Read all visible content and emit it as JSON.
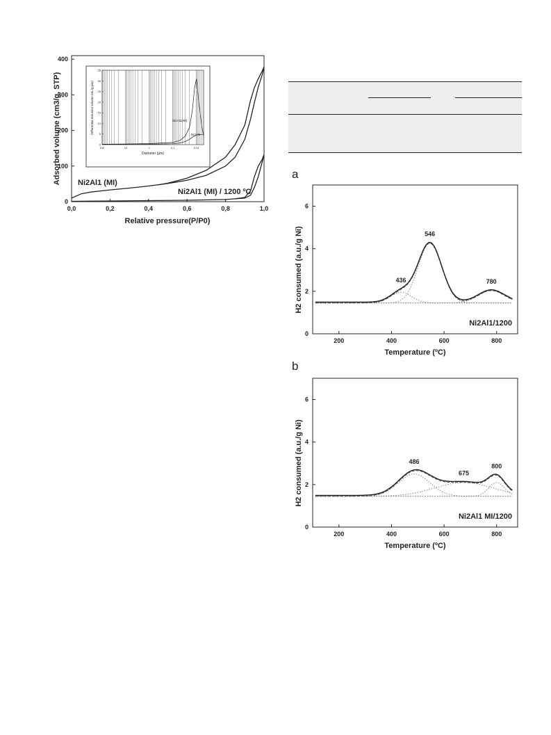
{
  "figure_isotherm": {
    "chart_data": {
      "type": "line",
      "title": "",
      "xlabel": "Relative pressure(P/P0)",
      "ylabel": "Adsorbed volume (cm3/g, STP)",
      "xlim": [
        0.0,
        1.0
      ],
      "ylim": [
        0,
        410
      ],
      "x_ticks": [
        "0,0",
        "0,2",
        "0,4",
        "0,6",
        "0,8",
        "1,0"
      ],
      "y_ticks": [
        "0",
        "100",
        "200",
        "300",
        "400"
      ],
      "series": [
        {
          "name": "Ni2Al1 (MI)",
          "x": [
            0.0,
            0.05,
            0.1,
            0.2,
            0.3,
            0.4,
            0.5,
            0.6,
            0.7,
            0.8,
            0.85,
            0.9,
            0.93,
            0.95,
            0.97,
            0.99,
            1.0
          ],
          "y": [
            10,
            22,
            27,
            33,
            38,
            44,
            51,
            60,
            74,
            100,
            125,
            175,
            232,
            278,
            322,
            355,
            378
          ],
          "branch": "adsorption"
        },
        {
          "name": "Ni2Al1 (MI) desorption",
          "x": [
            1.0,
            0.99,
            0.97,
            0.95,
            0.93,
            0.9,
            0.85,
            0.8,
            0.7,
            0.6,
            0.5,
            0.45
          ],
          "y": [
            378,
            366,
            345,
            320,
            285,
            215,
            160,
            125,
            88,
            66,
            52,
            47
          ],
          "branch": "desorption"
        },
        {
          "name": "Ni2Al1 (MI) / 1200 ºC",
          "x": [
            0.0,
            0.2,
            0.4,
            0.6,
            0.8,
            0.9,
            0.93,
            0.95,
            0.97,
            0.99,
            1.0
          ],
          "y": [
            1,
            2,
            3,
            4,
            6,
            10,
            18,
            40,
            70,
            110,
            132
          ],
          "branch": "adsorption"
        },
        {
          "name": "Ni2Al1 (MI) / 1200 ºC desorption",
          "x": [
            1.0,
            0.99,
            0.97,
            0.95,
            0.93,
            0.9,
            0.85
          ],
          "y": [
            132,
            118,
            100,
            70,
            30,
            12,
            8
          ],
          "branch": "desorption"
        }
      ],
      "annotations": [
        "Ni2Al1 (MI)",
        "Ni2Al1 (MI) / 1200 ºC"
      ]
    },
    "inset": {
      "chart_data": {
        "type": "line",
        "xlabel": "Diameter (µm)",
        "ylabel": "Differential Intrusion volume (mL/g·µm)",
        "x_scale": "log",
        "x_reversed": true,
        "xlim": [
          100,
          0.005
        ],
        "ylim": [
          0,
          35
        ],
        "x_ticks": [
          "100",
          "10",
          "1",
          "0,1",
          "0,01"
        ],
        "y_ticks": [
          "0",
          "5",
          "10",
          "15",
          "20",
          "25",
          "30",
          "35"
        ],
        "series": [
          {
            "name": "Ni2Al1(MI)",
            "x": [
              100,
              10,
              1,
              0.1,
              0.05,
              0.03,
              0.02,
              0.015,
              0.012,
              0.01,
              0.008,
              0.006,
              0.005
            ],
            "y": [
              0.2,
              0.3,
              0.5,
              1,
              2,
              4,
              8,
              16,
              27,
              31,
              20,
              9,
              4
            ]
          },
          {
            "name": "Ni2Al1",
            "x": [
              100,
              10,
              1,
              0.1,
              0.05,
              0.03,
              0.02,
              0.015,
              0.01,
              0.007,
              0.005
            ],
            "y": [
              0.1,
              0.1,
              0.2,
              0.4,
              0.8,
              1.5,
              2.5,
              3.5,
              4.5,
              4.8,
              4.6
            ]
          }
        ],
        "annotations": [
          "Ni2Al1(MI)",
          "Ni2Al1"
        ]
      }
    }
  },
  "figure_tpr_a": {
    "panel_label": "a",
    "chart_data": {
      "type": "line",
      "xlabel": "Temperature (ºC)",
      "ylabel": "H2 consumed (a.u./g Ni)",
      "xlim": [
        100,
        880
      ],
      "ylim": [
        0,
        7
      ],
      "x_ticks": [
        "200",
        "400",
        "600",
        "800"
      ],
      "y_ticks": [
        "0",
        "2",
        "4",
        "6"
      ],
      "sample": "Ni2Al1/1200",
      "baseline": 1.45,
      "peaks": [
        {
          "label": "436",
          "center": 436,
          "height": 0.5,
          "width": 40
        },
        {
          "label": "546",
          "center": 546,
          "height": 2.8,
          "width": 45
        },
        {
          "label": "780",
          "center": 780,
          "height": 0.58,
          "width": 50
        }
      ],
      "end_value": 1.55
    }
  },
  "figure_tpr_b": {
    "panel_label": "b",
    "chart_data": {
      "type": "line",
      "xlabel": "Temperature (ºC)",
      "ylabel": "H2 consumed (a.u./g Ni)",
      "xlim": [
        100,
        880
      ],
      "ylim": [
        0,
        7
      ],
      "x_ticks": [
        "200",
        "400",
        "600",
        "800"
      ],
      "y_ticks": [
        "0",
        "2",
        "4",
        "6"
      ],
      "sample": "Ni2Al1 MI/1200",
      "baseline": 1.45,
      "peaks": [
        {
          "label": "486",
          "center": 486,
          "height": 1.05,
          "width": 60
        },
        {
          "label": "675",
          "center": 675,
          "height": 0.65,
          "width": 110
        },
        {
          "label": "800",
          "center": 800,
          "height": 0.65,
          "width": 30
        }
      ],
      "end_value": 1.6
    }
  },
  "styles": {
    "ink": "#222222",
    "table_band": "#eeeeee",
    "fit_dotted": "#888888"
  }
}
